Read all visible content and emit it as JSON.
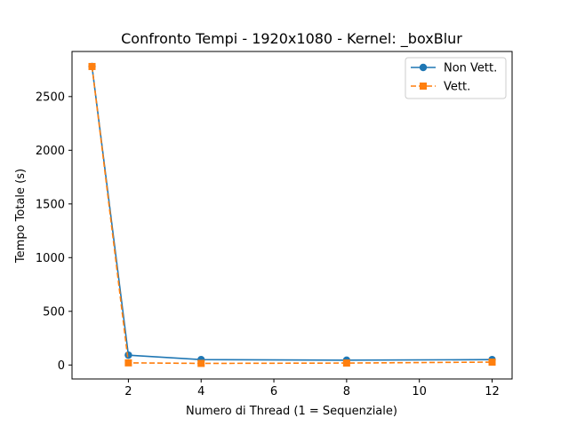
{
  "chart_data": {
    "type": "line",
    "title": "Confronto Tempi - 1920x1080 - Kernel: _boxBlur",
    "xlabel": "Numero di Thread (1 = Sequenziale)",
    "ylabel": "Tempo Totale (s)",
    "x": [
      1,
      2,
      4,
      8,
      12
    ],
    "xlim": [
      0.45,
      12.55
    ],
    "ylim": [
      -130,
      2920
    ],
    "xticks": [
      2,
      4,
      6,
      8,
      10,
      12
    ],
    "xtick_labels": [
      "2",
      "4",
      "6",
      "8",
      "10",
      "12"
    ],
    "yticks": [
      0,
      500,
      1000,
      1500,
      2000,
      2500
    ],
    "ytick_labels": [
      "0",
      "500",
      "1000",
      "1500",
      "2000",
      "2500"
    ],
    "grid": false,
    "legend_position": "top-right",
    "series": [
      {
        "name": "Non Vett.",
        "values": [
          2780,
          92,
          50,
          45,
          50
        ],
        "color": "#1f77b4",
        "marker": "circle",
        "linestyle": "solid"
      },
      {
        "name": "Vett.",
        "values": [
          2780,
          20,
          15,
          18,
          27
        ],
        "color": "#ff7f0e",
        "marker": "square",
        "linestyle": "dashed"
      }
    ]
  }
}
